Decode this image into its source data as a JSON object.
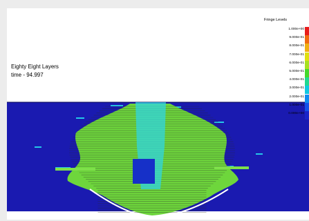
{
  "model": {
    "title": "Eighty Eight Layers",
    "time_label": "time - 94.997"
  },
  "legend": {
    "title": "Fringe Levels",
    "levels": [
      {
        "label": "1.000e+00",
        "color": "#e81c1c"
      },
      {
        "label": "9.000e-01",
        "color": "#f06a10"
      },
      {
        "label": "8.000e-01",
        "color": "#f0b010"
      },
      {
        "label": "7.000e-01",
        "color": "#e0e010"
      },
      {
        "label": "6.000e-01",
        "color": "#a8e020"
      },
      {
        "label": "5.000e-01",
        "color": "#44d82c"
      },
      {
        "label": "4.000e-01",
        "color": "#20d890"
      },
      {
        "label": "3.000e-01",
        "color": "#10c8e0"
      },
      {
        "label": "2.000e-01",
        "color": "#108cf0"
      },
      {
        "label": "1.000e-01",
        "color": "#1450e8"
      },
      {
        "label": "0.000e+00",
        "color": "#1a24c8"
      }
    ]
  },
  "colors": {
    "background": "#1a1ab0",
    "plume": "#6ed63c",
    "stripe": "#2a2a2a",
    "core": "#30d6e0",
    "hole": "#1630c8"
  }
}
